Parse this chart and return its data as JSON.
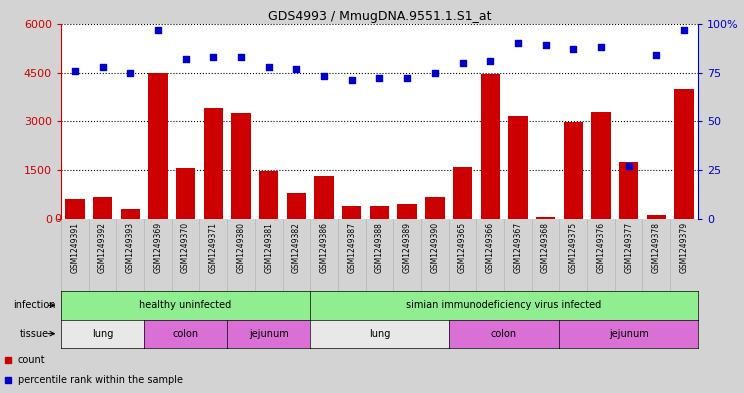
{
  "title": "GDS4993 / MmugDNA.9551.1.S1_at",
  "samples": [
    "GSM1249391",
    "GSM1249392",
    "GSM1249393",
    "GSM1249369",
    "GSM1249370",
    "GSM1249371",
    "GSM1249380",
    "GSM1249381",
    "GSM1249382",
    "GSM1249386",
    "GSM1249387",
    "GSM1249388",
    "GSM1249389",
    "GSM1249390",
    "GSM1249365",
    "GSM1249366",
    "GSM1249367",
    "GSM1249368",
    "GSM1249375",
    "GSM1249376",
    "GSM1249377",
    "GSM1249378",
    "GSM1249379"
  ],
  "counts": [
    600,
    650,
    300,
    4500,
    1550,
    3400,
    3250,
    1480,
    800,
    1300,
    380,
    400,
    450,
    650,
    1600,
    4450,
    3150,
    50,
    2980,
    3300,
    1750,
    100,
    4000
  ],
  "percentiles": [
    76,
    78,
    75,
    97,
    82,
    83,
    83,
    78,
    77,
    73,
    71,
    72,
    72,
    75,
    80,
    81,
    90,
    89,
    87,
    88,
    27,
    84,
    97
  ],
  "bar_color": "#cc0000",
  "dot_color": "#0000cc",
  "ylim_left": [
    0,
    6000
  ],
  "ylim_right": [
    0,
    100
  ],
  "yticks_left": [
    0,
    1500,
    3000,
    4500,
    6000
  ],
  "yticks_right": [
    0,
    25,
    50,
    75,
    100
  ],
  "healthy_count": 9,
  "infected_count": 14,
  "infection_labels": [
    "healthy uninfected",
    "simian immunodeficiency virus infected"
  ],
  "infection_color": "#90ee90",
  "tissue_groups": [
    {
      "label": "lung",
      "start": 0,
      "end": 3,
      "color": "#e8e8e8"
    },
    {
      "label": "colon",
      "start": 3,
      "end": 6,
      "color": "#da70d6"
    },
    {
      "label": "jejunum",
      "start": 6,
      "end": 9,
      "color": "#da70d6"
    },
    {
      "label": "lung",
      "start": 9,
      "end": 14,
      "color": "#e8e8e8"
    },
    {
      "label": "colon",
      "start": 14,
      "end": 18,
      "color": "#da70d6"
    },
    {
      "label": "jejunum",
      "start": 18,
      "end": 23,
      "color": "#da70d6"
    }
  ],
  "bg_color": "#d3d3d3",
  "plot_bg_color": "#ffffff",
  "xtick_bg_color": "#d3d3d3",
  "left_axis_color": "#cc0000",
  "right_axis_color": "#0000cc"
}
